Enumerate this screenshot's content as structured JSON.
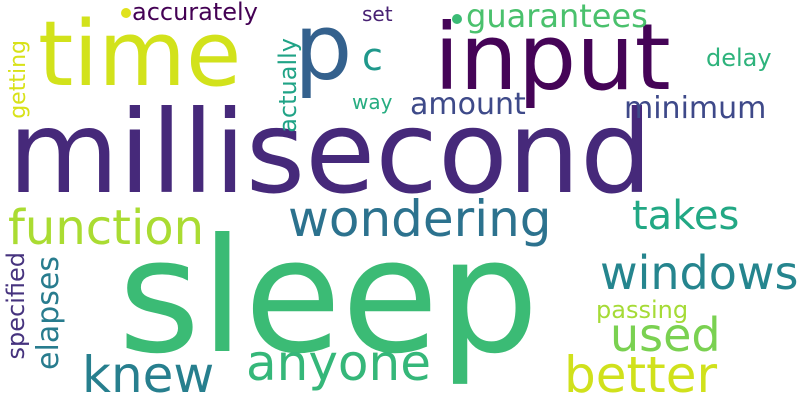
{
  "words": {
    "millisecond": {
      "text": "millisecond",
      "color": "#46297a"
    },
    "sleep": {
      "text": "sleep",
      "color": "#3bbb75"
    },
    "input": {
      "text": "input",
      "color": "#450457"
    },
    "time": {
      "text": "time",
      "color": "#d2e21b"
    },
    "p": {
      "text": "p",
      "color": "#34618d"
    },
    "wondering": {
      "text": "wondering",
      "color": "#2c728e"
    },
    "function": {
      "text": "function",
      "color": "#aadc32"
    },
    "windows": {
      "text": "windows",
      "color": "#25858e"
    },
    "better": {
      "text": "better",
      "color": "#d0e11c"
    },
    "anyone": {
      "text": "anyone",
      "color": "#35b779"
    },
    "knew": {
      "text": "knew",
      "color": "#277f8e"
    },
    "used": {
      "text": "used",
      "color": "#7ad151"
    },
    "takes": {
      "text": "takes",
      "color": "#22a884"
    },
    "guarantees": {
      "text": "guarantees",
      "color": "#4ac16d"
    },
    "minimum": {
      "text": "minimum",
      "color": "#3e4989"
    },
    "amount": {
      "text": "amount",
      "color": "#3e4a89"
    },
    "c": {
      "text": "c",
      "color": "#1f988b"
    },
    "accurately": {
      "text": "accurately",
      "color": "#440154"
    },
    "set": {
      "text": "set",
      "color": "#482173"
    },
    "delay": {
      "text": "delay",
      "color": "#2eb37c"
    },
    "way": {
      "text": "way",
      "color": "#27ad81"
    },
    "passing": {
      "text": "passing",
      "color": "#a5db36"
    },
    "getting": {
      "text": "getting",
      "color": "#d8e219"
    },
    "actually": {
      "text": "actually",
      "color": "#20a386"
    },
    "elapses": {
      "text": "elapses",
      "color": "#287c8e"
    },
    "specified": {
      "text": "specified",
      "color": "#46337e"
    }
  },
  "dots": {
    "dot_1": {
      "color": "#e0e21c"
    },
    "dot_2": {
      "color": "#3bbb75"
    }
  }
}
